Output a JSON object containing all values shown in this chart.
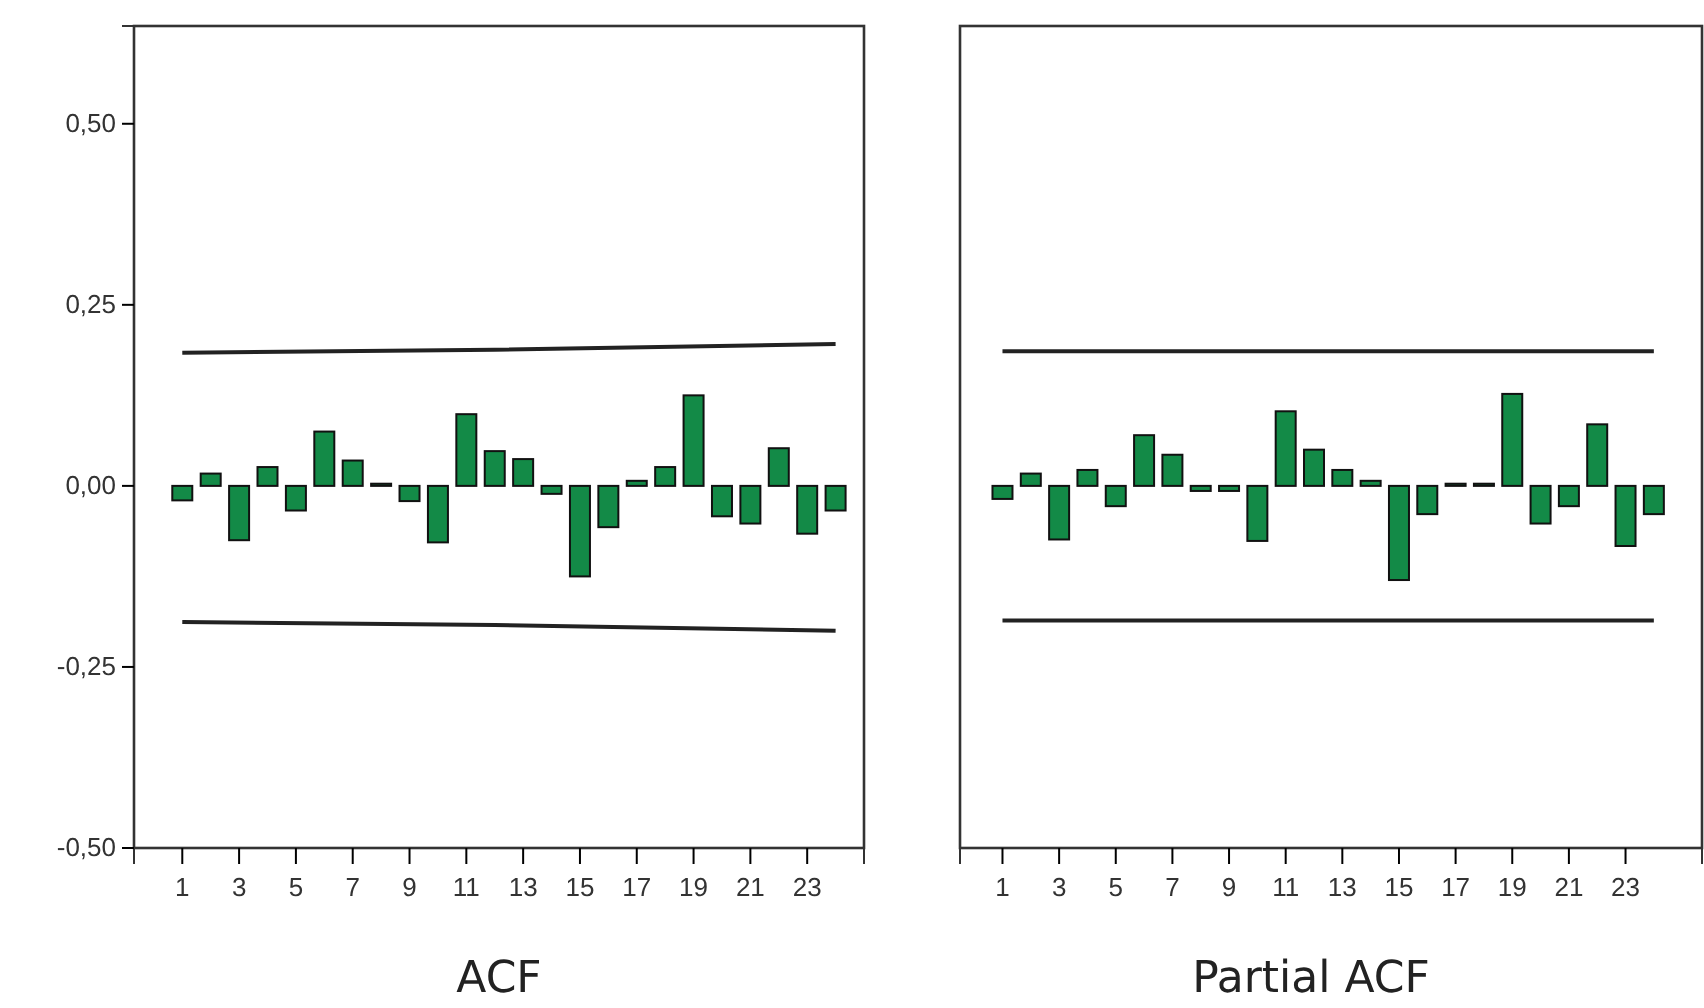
{
  "chart_data": [
    {
      "type": "bar",
      "xlabel": "ACF",
      "x": [
        1,
        2,
        3,
        4,
        5,
        6,
        7,
        8,
        9,
        10,
        11,
        12,
        13,
        14,
        15,
        16,
        17,
        18,
        19,
        20,
        21,
        22,
        23,
        24
      ],
      "series": [
        {
          "color": "#138a47",
          "values": [
            -0.02,
            0.017,
            -0.075,
            0.026,
            -0.034,
            0.075,
            0.035,
            0.003,
            -0.021,
            -0.078,
            0.099,
            0.048,
            0.037,
            -0.011,
            -0.125,
            -0.057,
            0.007,
            0.026,
            0.125,
            -0.042,
            -0.052,
            0.052,
            -0.066,
            -0.034
          ]
        },
        {
          "type": "line",
          "color": "#222222",
          "x": [
            1,
            12,
            24
          ],
          "values": [
            0.184,
            0.188,
            0.196
          ]
        },
        {
          "type": "line",
          "color": "#222222",
          "x": [
            1,
            12,
            24
          ],
          "values": [
            -0.188,
            -0.192,
            -0.2
          ]
        }
      ],
      "xlim": [
        -0.7,
        25
      ],
      "xticks": [
        1,
        3,
        5,
        7,
        9,
        11,
        13,
        15,
        17,
        19,
        21,
        23
      ],
      "ylim": [
        -0.5,
        0.635
      ],
      "yticks": [
        {
          "value": -0.5,
          "label": "-0,50"
        },
        {
          "value": -0.25,
          "label": "-0,25"
        },
        {
          "value": 0,
          "label": "0,00"
        },
        {
          "value": 0.25,
          "label": "0,25"
        },
        {
          "value": 0.5,
          "label": "0,50"
        }
      ],
      "grid": false
    },
    {
      "type": "bar",
      "xlabel": "Partial ACF",
      "x": [
        1,
        2,
        3,
        4,
        5,
        6,
        7,
        8,
        9,
        10,
        11,
        12,
        13,
        14,
        15,
        16,
        17,
        18,
        19,
        20,
        21,
        22,
        23,
        24
      ],
      "series": [
        {
          "color": "#138a47",
          "values": [
            -0.018,
            0.017,
            -0.074,
            0.022,
            -0.028,
            0.07,
            0.043,
            -0.007,
            -0.007,
            -0.076,
            0.103,
            0.05,
            0.022,
            0.007,
            -0.13,
            -0.039,
            0.003,
            0.003,
            0.127,
            -0.052,
            -0.028,
            0.085,
            -0.083,
            -0.039
          ]
        },
        {
          "type": "line",
          "color": "#222222",
          "x": [
            1,
            24
          ],
          "values": [
            0.186,
            0.186
          ]
        },
        {
          "type": "line",
          "color": "#222222",
          "x": [
            1,
            24
          ],
          "values": [
            -0.186,
            -0.186
          ]
        }
      ],
      "xlim": [
        -0.5,
        25.7
      ],
      "xticks": [
        1,
        3,
        5,
        7,
        9,
        11,
        13,
        15,
        17,
        19,
        21,
        23
      ],
      "ylim": [
        -0.5,
        0.635
      ],
      "tick_labels": "x",
      "grid": false
    }
  ]
}
